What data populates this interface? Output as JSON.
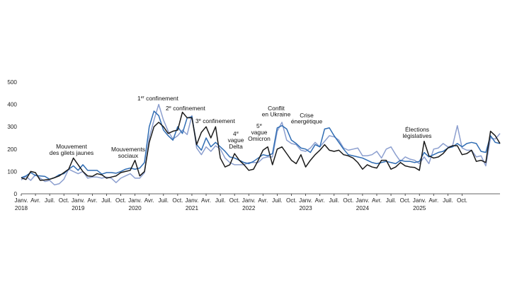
{
  "chart_data": {
    "type": "line",
    "title": "",
    "xlabel": "",
    "ylabel": "",
    "ylim": [
      0,
      500
    ],
    "yticks": [
      "0",
      "100",
      "200",
      "300",
      "400",
      "500"
    ],
    "x_tick_labels": [
      "Janv.",
      "Avr.",
      "Juil.",
      "Oct.",
      "Janv.",
      "Avr.",
      "Juil.",
      "Oct.",
      "Janv.",
      "Avr.",
      "Juil.",
      "Oct.",
      "Janv.",
      "Avr.",
      "Juil.",
      "Oct.",
      "Janv.",
      "Avr.",
      "Juil.",
      "Oct.",
      "Janv.",
      "Avr.",
      "Juil.",
      "Oct.",
      "Janv.",
      "Avr.",
      "Juil.",
      "Oct.",
      "Janv.",
      "Avr.",
      "Juil.",
      "Oct."
    ],
    "year_labels": [
      "2018",
      "2019",
      "2020",
      "2021",
      "2022",
      "2023",
      "2024",
      "2025"
    ],
    "series": [
      {
        "name": "black",
        "color": "#1a1a1a",
        "values": [
          72,
          64,
          100,
          95,
          60,
          62,
          65,
          72,
          80,
          95,
          110,
          160,
          130,
          100,
          80,
          78,
          90,
          85,
          70,
          75,
          80,
          95,
          100,
          105,
          150,
          80,
          100,
          230,
          300,
          320,
          300,
          270,
          280,
          285,
          365,
          340,
          340,
          220,
          275,
          300,
          250,
          300,
          160,
          120,
          130,
          180,
          150,
          130,
          105,
          110,
          150,
          195,
          210,
          130,
          200,
          210,
          180,
          150,
          135,
          175,
          120,
          150,
          175,
          195,
          220,
          195,
          190,
          195,
          175,
          170,
          160,
          140,
          110,
          130,
          120,
          115,
          150,
          150,
          110,
          120,
          140,
          125,
          120,
          118,
          105,
          235,
          170,
          160,
          165,
          180,
          205,
          215,
          215,
          175,
          180,
          195,
          145,
          150,
          140,
          280,
          260,
          225
        ]
      },
      {
        "name": "dark-blue",
        "color": "#2f6cb3",
        "values": [
          72,
          80,
          95,
          82,
          80,
          78,
          65,
          72,
          85,
          90,
          110,
          125,
          105,
          130,
          105,
          105,
          105,
          88,
          95,
          95,
          92,
          100,
          110,
          115,
          110,
          115,
          140,
          300,
          370,
          350,
          285,
          260,
          240,
          300,
          270,
          340,
          345,
          220,
          195,
          250,
          210,
          230,
          210,
          190,
          165,
          160,
          150,
          140,
          135,
          145,
          160,
          175,
          170,
          180,
          295,
          305,
          290,
          240,
          225,
          205,
          200,
          185,
          220,
          210,
          290,
          295,
          260,
          230,
          200,
          175,
          170,
          165,
          160,
          150,
          140,
          135,
          140,
          145,
          140,
          135,
          150,
          145,
          145,
          140,
          145,
          185,
          165,
          175,
          185,
          190,
          205,
          210,
          225,
          210,
          225,
          230,
          225,
          190,
          185,
          260,
          230,
          225
        ]
      },
      {
        "name": "light-blue",
        "color": "#8c9fcf",
        "values": [
          62,
          78,
          60,
          85,
          70,
          55,
          60,
          40,
          45,
          65,
          110,
          100,
          90,
          100,
          70,
          75,
          75,
          70,
          75,
          70,
          50,
          70,
          80,
          90,
          70,
          70,
          95,
          250,
          330,
          400,
          330,
          280,
          245,
          260,
          285,
          265,
          350,
          205,
          175,
          210,
          190,
          215,
          200,
          160,
          140,
          130,
          130,
          130,
          140,
          140,
          140,
          160,
          165,
          165,
          280,
          320,
          240,
          225,
          220,
          195,
          190,
          205,
          230,
          210,
          235,
          260,
          255,
          240,
          205,
          195,
          200,
          205,
          170,
          170,
          175,
          190,
          160,
          200,
          210,
          175,
          145,
          165,
          155,
          150,
          135,
          165,
          135,
          200,
          205,
          225,
          210,
          215,
          305,
          205,
          195,
          195,
          165,
          170,
          125,
          250,
          245,
          270
        ]
      }
    ],
    "annotations": [
      {
        "lines": [
          "Mouvement",
          "des gilets jaunes"
        ]
      },
      {
        "lines": [
          "Mouvements",
          "sociaux"
        ]
      },
      {
        "lines": [
          "1er confinement"
        ]
      },
      {
        "lines": [
          "2e confinement"
        ]
      },
      {
        "lines": [
          "3e confinement"
        ]
      },
      {
        "lines": [
          "4e",
          "vague",
          "Delta"
        ]
      },
      {
        "lines": [
          "5e",
          "vague",
          "Omicron"
        ]
      },
      {
        "lines": [
          "Conflit",
          "en Ukraine"
        ]
      },
      {
        "lines": [
          "Crise",
          "énergétique"
        ]
      },
      {
        "lines": [
          "Élections",
          "législatives"
        ]
      }
    ]
  }
}
